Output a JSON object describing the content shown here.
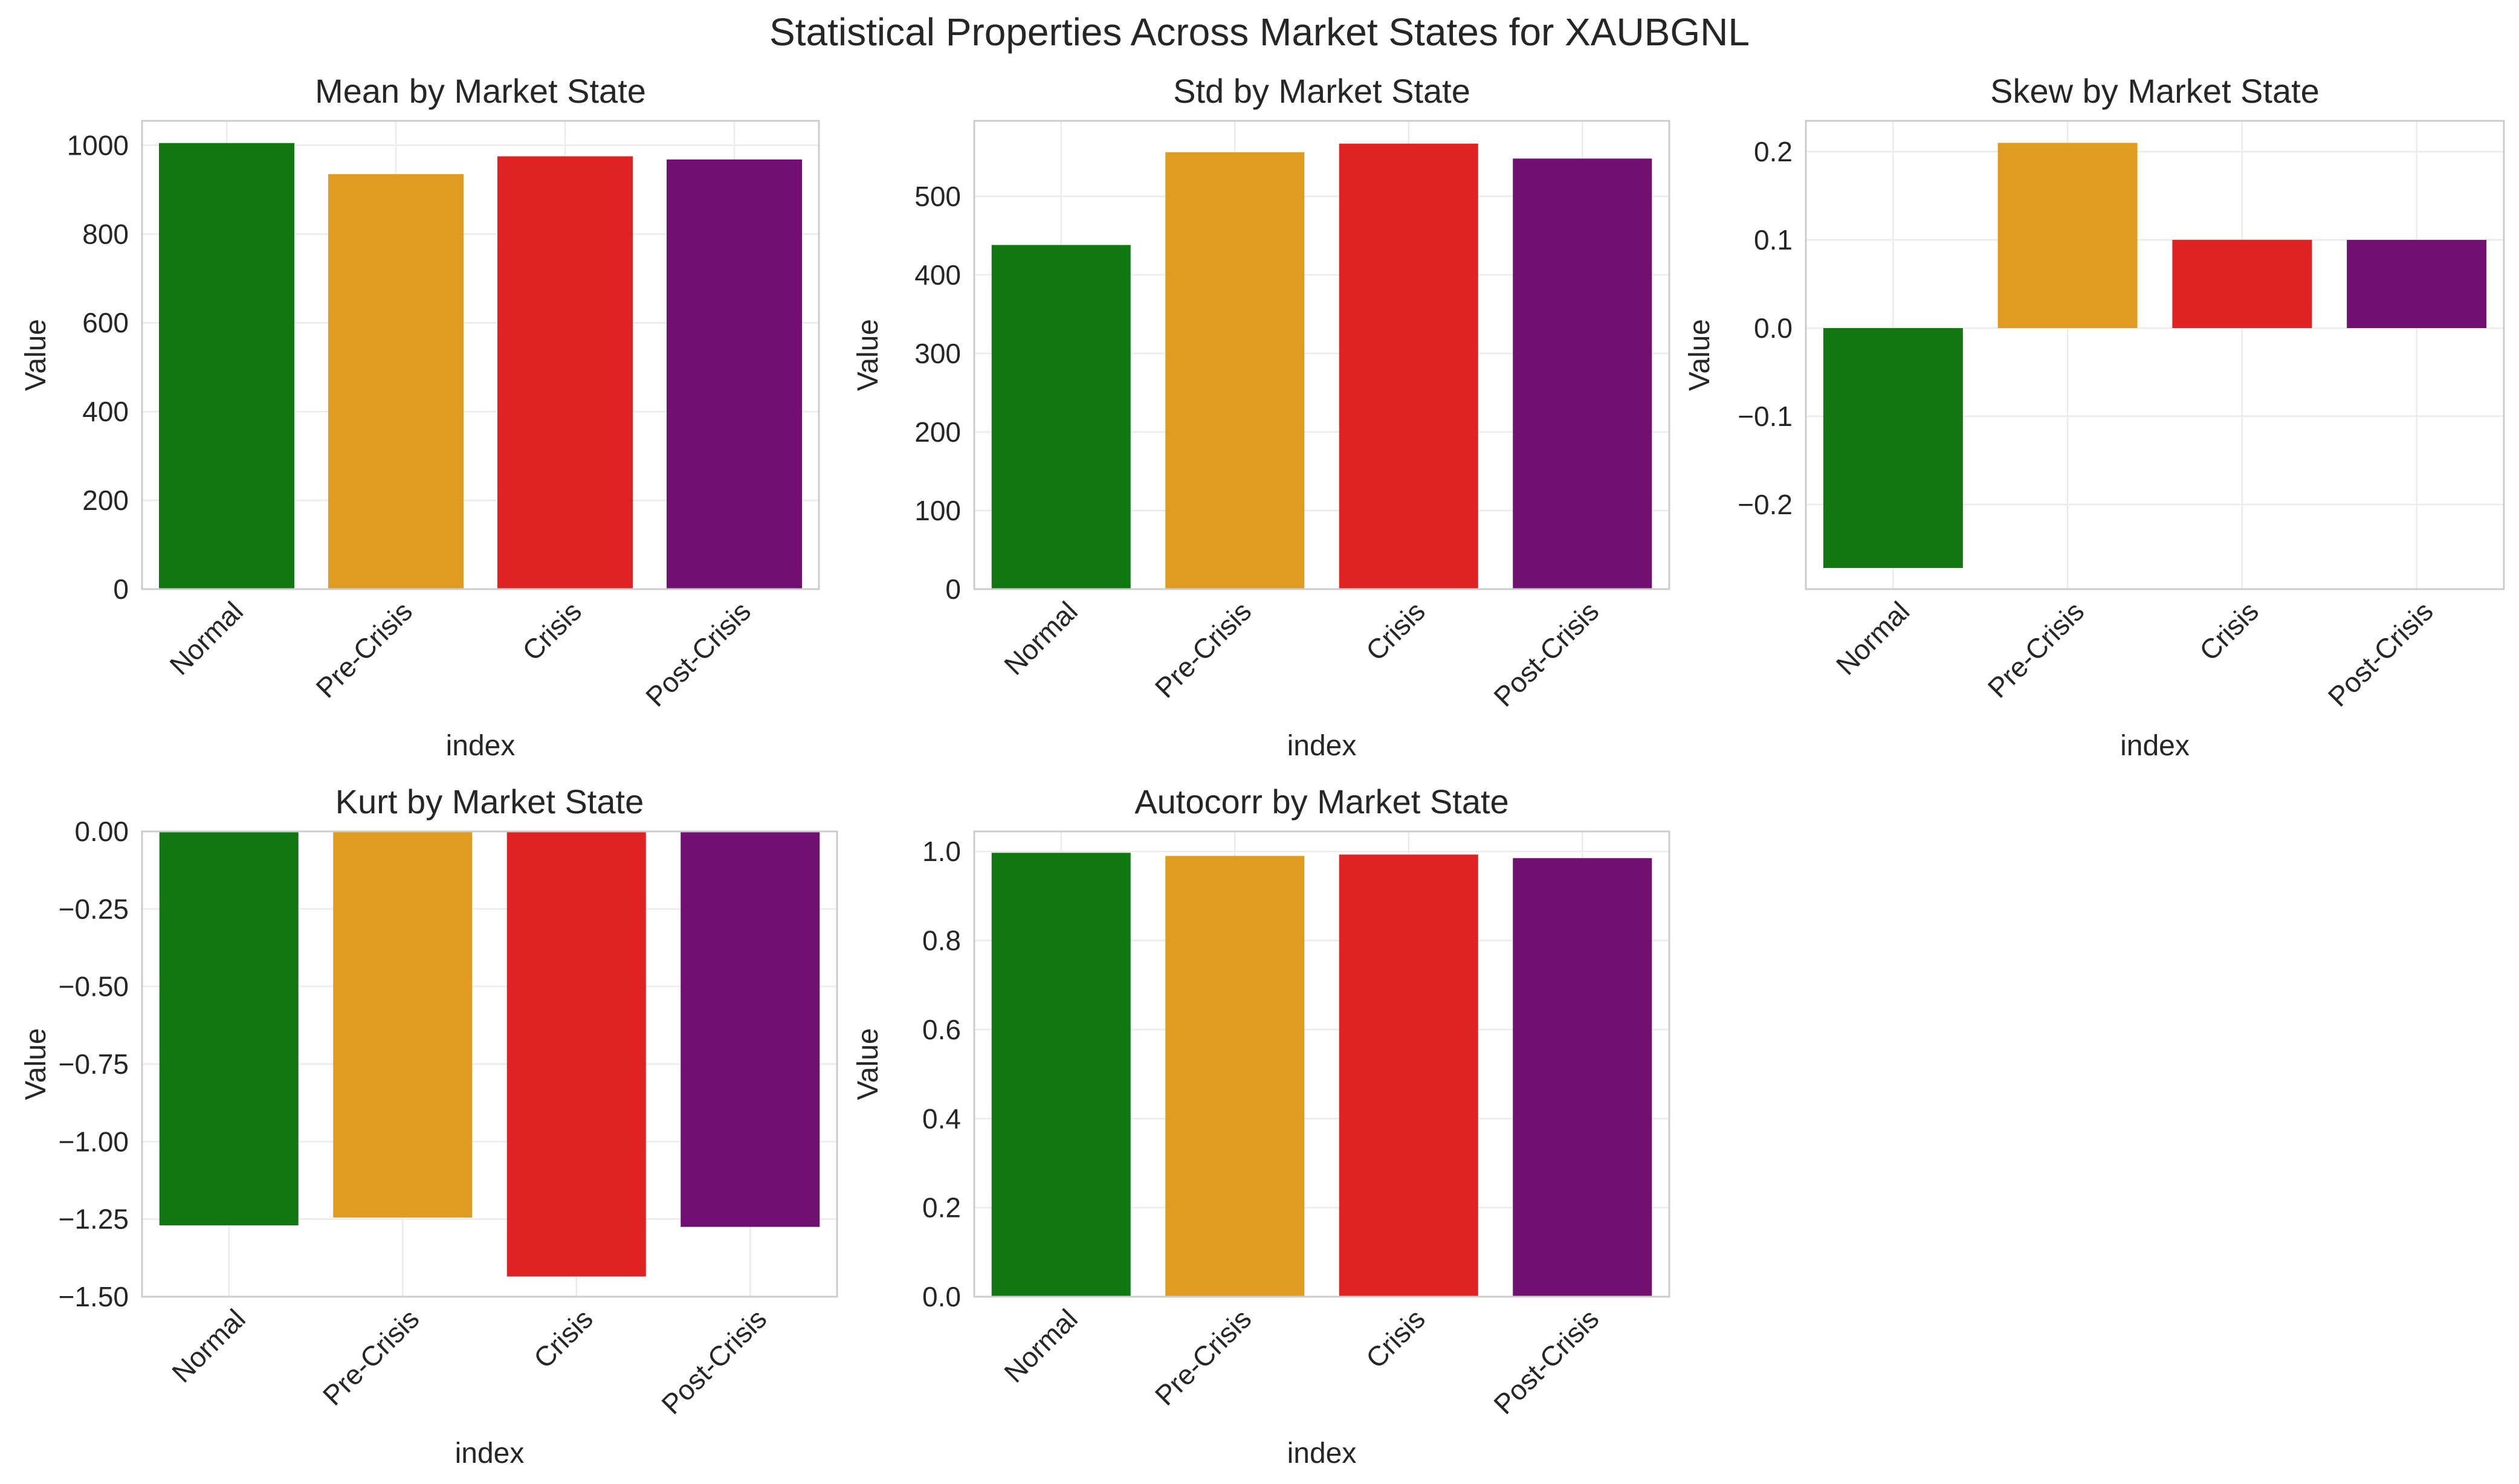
{
  "figure": {
    "suptitle": "Statistical Properties Across Market States for XAUBGNL"
  },
  "colors": {
    "Normal": "#117711",
    "Pre-Crisis": "#e09c21",
    "Crisis": "#e02222",
    "Post-Crisis": "#701070",
    "grid": "#ebebeb",
    "spine": "#cccccc"
  },
  "chart_data": [
    {
      "type": "bar",
      "title": "Mean by Market State",
      "xlabel": "index",
      "ylabel": "Value",
      "categories": [
        "Normal",
        "Pre-Crisis",
        "Crisis",
        "Post-Crisis"
      ],
      "values": [
        1005,
        935,
        975,
        968
      ],
      "ylim": [
        0,
        1055
      ],
      "yticks": [
        0,
        200,
        400,
        600,
        800,
        1000
      ],
      "ytick_labels": [
        "0",
        "200",
        "400",
        "600",
        "800",
        "1000"
      ],
      "grid": true
    },
    {
      "type": "bar",
      "title": "Std by Market State",
      "xlabel": "index",
      "ylabel": "Value",
      "categories": [
        "Normal",
        "Pre-Crisis",
        "Crisis",
        "Post-Crisis"
      ],
      "values": [
        438,
        556,
        567,
        548
      ],
      "ylim": [
        0,
        596
      ],
      "yticks": [
        0,
        100,
        200,
        300,
        400,
        500
      ],
      "ytick_labels": [
        "0",
        "100",
        "200",
        "300",
        "400",
        "500"
      ],
      "grid": true
    },
    {
      "type": "bar",
      "title": "Skew by Market State",
      "xlabel": "index",
      "ylabel": "Value",
      "categories": [
        "Normal",
        "Pre-Crisis",
        "Crisis",
        "Post-Crisis"
      ],
      "values": [
        -0.272,
        0.21,
        0.1,
        0.1
      ],
      "ylim": [
        -0.296,
        0.235
      ],
      "yticks": [
        -0.2,
        -0.1,
        0.0,
        0.1,
        0.2
      ],
      "ytick_labels": [
        "−0.2",
        "−0.1",
        "0.0",
        "0.1",
        "0.2"
      ],
      "grid": true
    },
    {
      "type": "bar",
      "title": "Kurt by Market State",
      "xlabel": "index",
      "ylabel": "Value",
      "categories": [
        "Normal",
        "Pre-Crisis",
        "Crisis",
        "Post-Crisis"
      ],
      "values": [
        -1.27,
        -1.245,
        -1.435,
        -1.275
      ],
      "ylim": [
        -1.5,
        0
      ],
      "yticks": [
        -1.5,
        -1.25,
        -1.0,
        -0.75,
        -0.5,
        -0.25,
        0.0
      ],
      "ytick_labels": [
        "−1.50",
        "−1.25",
        "−1.00",
        "−0.75",
        "−0.50",
        "−0.25",
        "0.00"
      ],
      "grid": true
    },
    {
      "type": "bar",
      "title": "Autocorr by Market State",
      "xlabel": "index",
      "ylabel": "Value",
      "categories": [
        "Normal",
        "Pre-Crisis",
        "Crisis",
        "Post-Crisis"
      ],
      "values": [
        0.997,
        0.99,
        0.993,
        0.985
      ],
      "ylim": [
        0,
        1.045
      ],
      "yticks": [
        0.0,
        0.2,
        0.4,
        0.6,
        0.8,
        1.0
      ],
      "ytick_labels": [
        "0.0",
        "0.2",
        "0.4",
        "0.6",
        "0.8",
        "1.0"
      ],
      "grid": true
    }
  ]
}
